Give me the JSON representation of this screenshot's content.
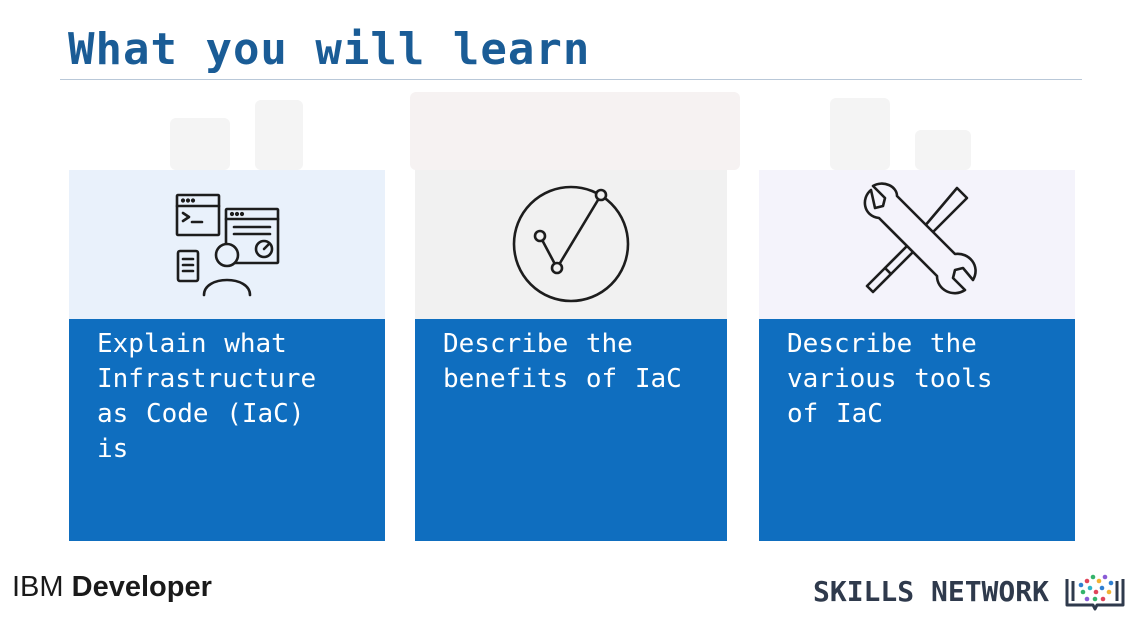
{
  "slide": {
    "title": "What you will learn"
  },
  "cards": [
    {
      "icon": "developer-workstation-icon",
      "text": "Explain what\nInfrastructure\nas Code (IaC)\nis"
    },
    {
      "icon": "checkmark-circle-icon",
      "text": "Describe the\nbenefits of IaC"
    },
    {
      "icon": "tools-wrench-screwdriver-icon",
      "text": "Describe the\nvarious tools\nof IaC"
    }
  ],
  "footer": {
    "brand_left_ibm": "IBM",
    "brand_left_developer": "Developer",
    "brand_right": "SKILLS NETWORK",
    "brand_right_logo": "skills-network-logo-icon"
  },
  "colors": {
    "title": "#1a5c96",
    "card_blue": "#0f6ebf",
    "card1_top": "#e9f1fb",
    "card2_top": "#f1f1f1",
    "card3_top": "#f4f3fb"
  }
}
